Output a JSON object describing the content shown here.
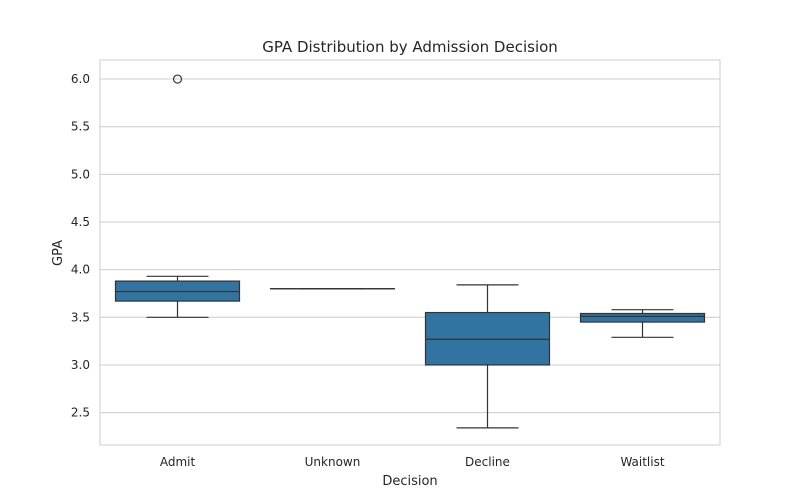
{
  "chart_data": {
    "type": "box",
    "title": "GPA Distribution by Admission Decision",
    "xlabel": "Decision",
    "ylabel": "GPA",
    "ylim": [
      2.16,
      6.2
    ],
    "yticks": [
      "2.5",
      "3.0",
      "3.5",
      "4.0",
      "4.5",
      "5.0",
      "5.5",
      "6.0"
    ],
    "grid": true,
    "box_color": "#3274a1",
    "line_color": "#333333",
    "grid_color": "#cccccc",
    "categories": [
      "Admit",
      "Unknown",
      "Decline",
      "Waitlist"
    ],
    "boxes": [
      {
        "category": "Admit",
        "whisker_low": 3.5,
        "q1": 3.67,
        "median": 3.77,
        "q3": 3.88,
        "whisker_high": 3.93,
        "outliers": [
          6.0
        ]
      },
      {
        "category": "Unknown",
        "whisker_low": 3.8,
        "q1": 3.8,
        "median": 3.8,
        "q3": 3.8,
        "whisker_high": 3.8,
        "outliers": []
      },
      {
        "category": "Decline",
        "whisker_low": 2.34,
        "q1": 3.0,
        "median": 3.27,
        "q3": 3.55,
        "whisker_high": 3.84,
        "outliers": []
      },
      {
        "category": "Waitlist",
        "whisker_low": 3.29,
        "q1": 3.45,
        "median": 3.51,
        "q3": 3.54,
        "whisker_high": 3.58,
        "outliers": []
      }
    ]
  }
}
